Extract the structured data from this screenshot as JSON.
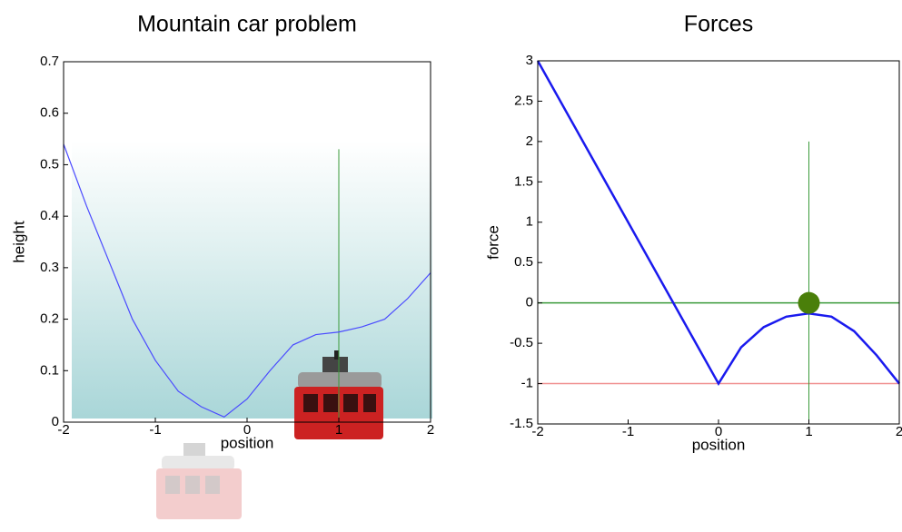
{
  "chart_data": [
    {
      "type": "line",
      "title": "Mountain car problem",
      "xlabel": "position",
      "ylabel": "height",
      "x": [
        -2,
        -1.75,
        -1.5,
        -1.25,
        -1,
        -0.75,
        -0.5,
        -0.25,
        0,
        0.25,
        0.5,
        0.75,
        1,
        1.25,
        1.5,
        1.75,
        2
      ],
      "series": [
        {
          "color": "#4a4aff",
          "values": [
            0.54,
            0.42,
            0.31,
            0.2,
            0.12,
            0.06,
            0.03,
            0.01,
            0.045,
            0.1,
            0.15,
            0.17,
            0.175,
            0.185,
            0.2,
            0.24,
            0.29
          ]
        }
      ],
      "xlim": [
        -2,
        2
      ],
      "ylim": [
        0,
        0.7
      ],
      "xticks": [
        -2,
        -1,
        0,
        1,
        2
      ],
      "yticks": [
        0,
        0.1,
        0.2,
        0.3,
        0.4,
        0.5,
        0.6,
        0.7
      ],
      "vlines": [
        {
          "x": 1,
          "span": [
            0,
            0.53
          ],
          "color": "#3a9a3a"
        }
      ]
    },
    {
      "type": "line",
      "title": "Forces",
      "xlabel": "position",
      "ylabel": "force",
      "x": [
        -2,
        -1.5,
        -1,
        -0.5,
        -0.25,
        0,
        0.25,
        0.5,
        0.75,
        1,
        1.25,
        1.5,
        1.75,
        2
      ],
      "series": [
        {
          "color": "#1a1aee",
          "values": [
            3,
            2,
            1,
            0,
            -0.5,
            -1,
            -0.55,
            -0.3,
            -0.17,
            -0.13,
            -0.17,
            -0.35,
            -0.65,
            -1
          ]
        }
      ],
      "xlim": [
        -2,
        2
      ],
      "ylim": [
        -1.5,
        3
      ],
      "xticks": [
        -2,
        -1,
        0,
        1,
        2
      ],
      "yticks": [
        -1.5,
        -1,
        -0.5,
        0,
        0.5,
        1,
        1.5,
        2,
        2.5,
        3
      ],
      "hlines": [
        {
          "y": 0,
          "color": "#3a9a3a"
        },
        {
          "y": -1,
          "color": "#f09090"
        }
      ],
      "vlines": [
        {
          "x": 1,
          "span": [
            -1.5,
            2
          ],
          "color": "#3a9a3a"
        }
      ],
      "point": {
        "x": 1,
        "y": 0,
        "color": "#4a7f0a"
      }
    }
  ]
}
